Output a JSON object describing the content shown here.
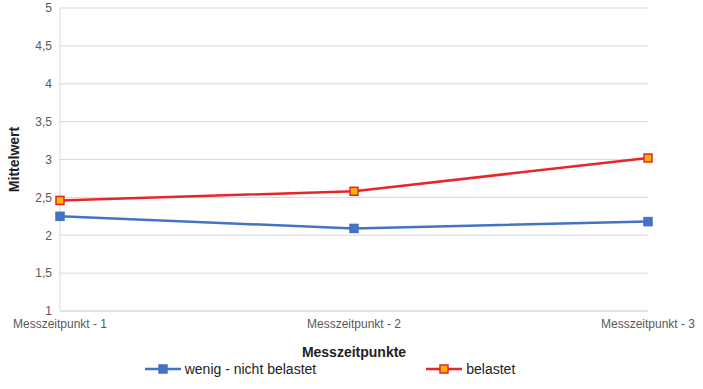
{
  "chart_data": {
    "type": "line",
    "x_label": "Messzeitpunkte",
    "y_label": "Mittelwert",
    "categories": [
      "Messzeitpunkt - 1",
      "Messzeitpunkt - 2",
      "Messzeitpunkt - 3"
    ],
    "series": [
      {
        "name": "wenig - nicht belastet",
        "color": "#4472c4",
        "values": [
          2.25,
          2.09,
          2.18
        ],
        "marker": "square"
      },
      {
        "name": "belastet",
        "color": "#e8262a",
        "values": [
          2.46,
          2.58,
          3.02
        ],
        "marker": "square"
      }
    ],
    "ylim": [
      1,
      5
    ],
    "yticks": [
      1,
      {
        "value": 1.5,
        "label": "1,5"
      },
      2,
      {
        "value": 2.5,
        "label": "2,5"
      },
      3,
      {
        "value": 3.5,
        "label": "3,5"
      },
      4,
      {
        "value": 4.5,
        "label": "4,5"
      },
      5
    ],
    "grid": true,
    "legend": "bottom"
  }
}
